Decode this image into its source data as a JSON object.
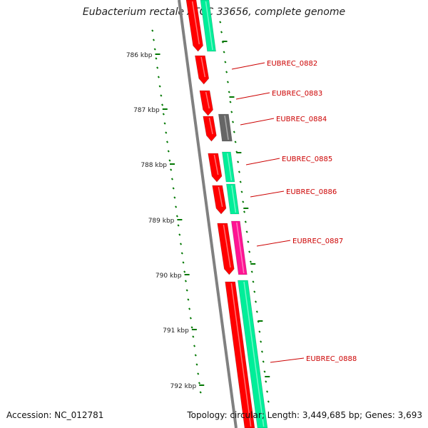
{
  "title": "Eubacterium rectale ATCC 33656, complete genome",
  "footer": {
    "accession": "Accession: NC_012781",
    "summary": "Topology: circular; Length: 3,449,685 bp; Genes: 3,693"
  },
  "colors": {
    "backbone": "#808080",
    "strand_a_gene": "#ff0000",
    "strand_b_gene": "#00ee99",
    "other_gene": "#666666",
    "rna_gene": "#ff1493",
    "label": "#cc0000",
    "tick": "#007700"
  },
  "scale_labels": [
    "786 kbp",
    "787 kbp",
    "788 kbp",
    "789 kbp",
    "790 kbp",
    "791 kbp",
    "792 kbp"
  ],
  "gene_labels": [
    "EUBREC_0882",
    "EUBREC_0883",
    "EUBREC_0884",
    "EUBREC_0885",
    "EUBREC_0886",
    "EUBREC_0887",
    "EUBREC_0888"
  ]
}
